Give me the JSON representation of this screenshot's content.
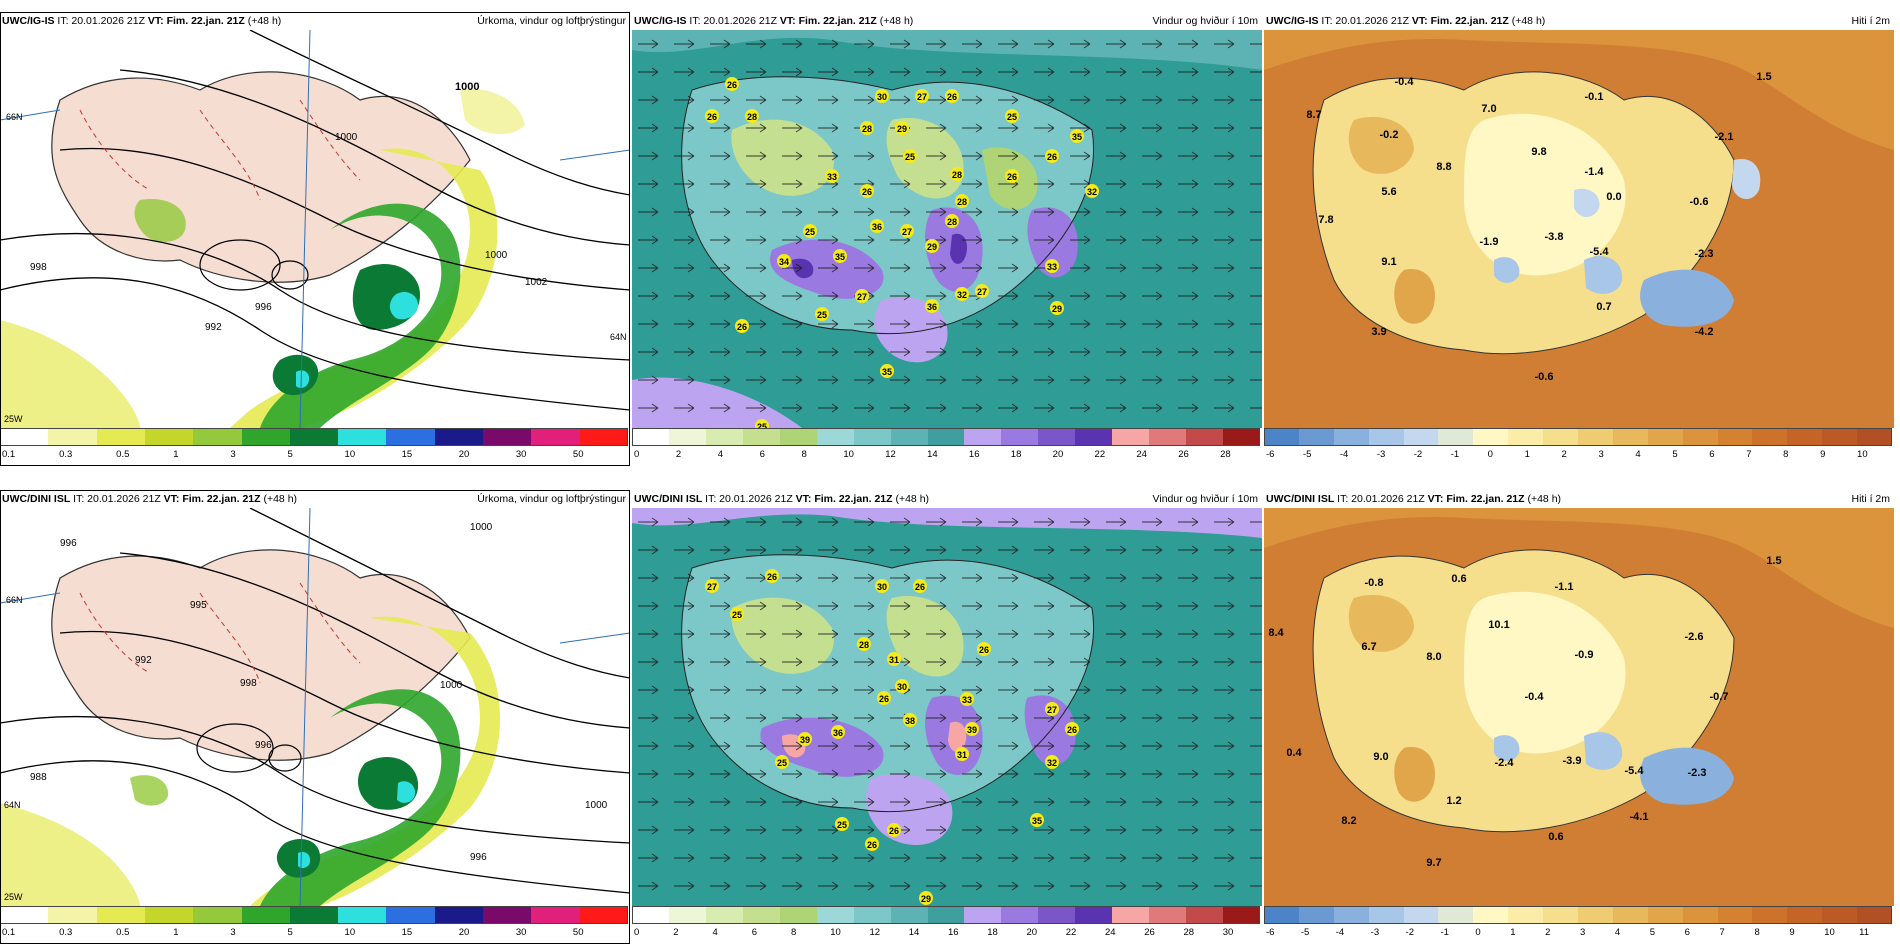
{
  "rows": [
    {
      "model": "UWC/IG-IS",
      "prefix": "IT: 20.01.2026 21Z",
      "vt": "VT: Fim. 22.jan. 21Z",
      "lead": "(+48 h)",
      "panels": [
        {
          "field": "Úrkoma, vindur og loftþrýstingur",
          "colorbar": [
            "0.1",
            "0.3",
            "0.5",
            "1",
            "3",
            "5",
            "10",
            "15",
            "20",
            "30",
            "50"
          ],
          "pressure_labels": [
            "1000",
            "1000",
            "996",
            "992",
            "998",
            "1000",
            "1002"
          ],
          "lat_labels": [
            "66N",
            "64N",
            "25W"
          ]
        },
        {
          "field": "Vindur og hviður í 10m",
          "colorbar": [
            "0",
            "2",
            "4",
            "6",
            "8",
            "10",
            "12",
            "14",
            "16",
            "18",
            "20",
            "22",
            "24",
            "26",
            "28"
          ],
          "gust_labels": [
            "26",
            "26",
            "28",
            "30",
            "27",
            "28",
            "29",
            "26",
            "33",
            "25",
            "28",
            "28",
            "25",
            "26",
            "35",
            "32",
            "27",
            "26",
            "34",
            "36",
            "35",
            "29",
            "36",
            "25",
            "27",
            "32",
            "26",
            "26",
            "25",
            "35",
            "27",
            "33",
            "29",
            "28",
            "25"
          ]
        },
        {
          "field": "Hiti í 2m",
          "colorbar": [
            "-6",
            "-5",
            "-4",
            "-3",
            "-2",
            "-1",
            "0",
            "1",
            "2",
            "3",
            "4",
            "5",
            "6",
            "7",
            "8",
            "9",
            "10"
          ],
          "temp_labels": [
            "-0.4",
            "8.7",
            "-0.2",
            "7.0",
            "-0.1",
            "1.5",
            "9.8",
            "-1.4",
            "-2.1",
            "8.8",
            "5.6",
            "0.0",
            "-0.6",
            "7.8",
            "-1.9",
            "-3.8",
            "-5.4",
            "-2.3",
            "9.1",
            "0.7",
            "3.9",
            "-4.2",
            "-0.6"
          ]
        }
      ]
    },
    {
      "model": "UWC/DINI ISL",
      "prefix": "IT: 20.01.2026 21Z",
      "vt": "VT: Fim. 22.jan. 21Z",
      "lead": "(+48 h)",
      "panels": [
        {
          "field": "Úrkoma, vindur og loftþrýstingur",
          "colorbar": [
            "0.1",
            "0.3",
            "0.5",
            "1",
            "3",
            "5",
            "10",
            "15",
            "20",
            "30",
            "50"
          ],
          "pressure_labels": [
            "996",
            "1000",
            "995",
            "992",
            "998",
            "996",
            "1000",
            "988",
            "1000",
            "996"
          ],
          "lat_labels": [
            "66N",
            "64N",
            "25W"
          ]
        },
        {
          "field": "Vindur og hviður í 10m",
          "colorbar": [
            "0",
            "2",
            "4",
            "6",
            "8",
            "10",
            "12",
            "14",
            "16",
            "18",
            "20",
            "22",
            "24",
            "26",
            "28",
            "30"
          ],
          "gust_labels": [
            "27",
            "26",
            "25",
            "30",
            "26",
            "28",
            "31",
            "26",
            "30",
            "33",
            "26",
            "27",
            "26",
            "36",
            "38",
            "31",
            "39",
            "32",
            "26",
            "39",
            "25",
            "25",
            "35",
            "26",
            "29"
          ]
        },
        {
          "field": "Hiti í 2m",
          "colorbar": [
            "-6",
            "-5",
            "-4",
            "-3",
            "-2",
            "-1",
            "0",
            "1",
            "2",
            "3",
            "4",
            "5",
            "6",
            "7",
            "8",
            "9",
            "10",
            "11"
          ],
          "temp_labels": [
            "-0.8",
            "0.6",
            "-1.1",
            "1.5",
            "8.4",
            "10.1",
            "6.7",
            "8.0",
            "-0.9",
            "-2.6",
            "-0.4",
            "-0.7",
            "0.4",
            "9.0",
            "-2.4",
            "-3.9",
            "-5.4",
            "-2.3",
            "1.2",
            "8.2",
            "0.6",
            "-4.1",
            "9.7"
          ]
        }
      ]
    }
  ],
  "colors": {
    "precip": [
      "#ffffff",
      "#f3f4a8",
      "#e6ea52",
      "#c5d62a",
      "#93c93b",
      "#2fa62b",
      "#0a7a35",
      "#2de0de",
      "#2b6fe0",
      "#1a1a8a",
      "#7a0a6a",
      "#e0207a",
      "#ff1a1a"
    ],
    "wind": [
      "#ffffff",
      "#eef6d8",
      "#d8ebb0",
      "#c4df90",
      "#aed476",
      "#9dd8d8",
      "#7cc8c8",
      "#5db3b3",
      "#3f9e9e",
      "#bda4f0",
      "#9a7ae0",
      "#7a56c8",
      "#5a34b0",
      "#f7a6a6",
      "#e07a7a",
      "#c24a4a",
      "#9a1a1a"
    ],
    "temp": [
      "#4d83c7",
      "#6b9ad3",
      "#8ab1de",
      "#a8c6e8",
      "#c3d8ef",
      "#dfe9d6",
      "#fff8c4",
      "#fbeda8",
      "#f5de8c",
      "#efcc72",
      "#e8b95c",
      "#e2a64a",
      "#db933c",
      "#d48232",
      "#cc722a",
      "#c46426",
      "#bb5a24",
      "#b05024"
    ],
    "land_pale": "#f6ddd2",
    "sea_teal": "#2f9c96",
    "temp_sea": "#d17e35"
  }
}
